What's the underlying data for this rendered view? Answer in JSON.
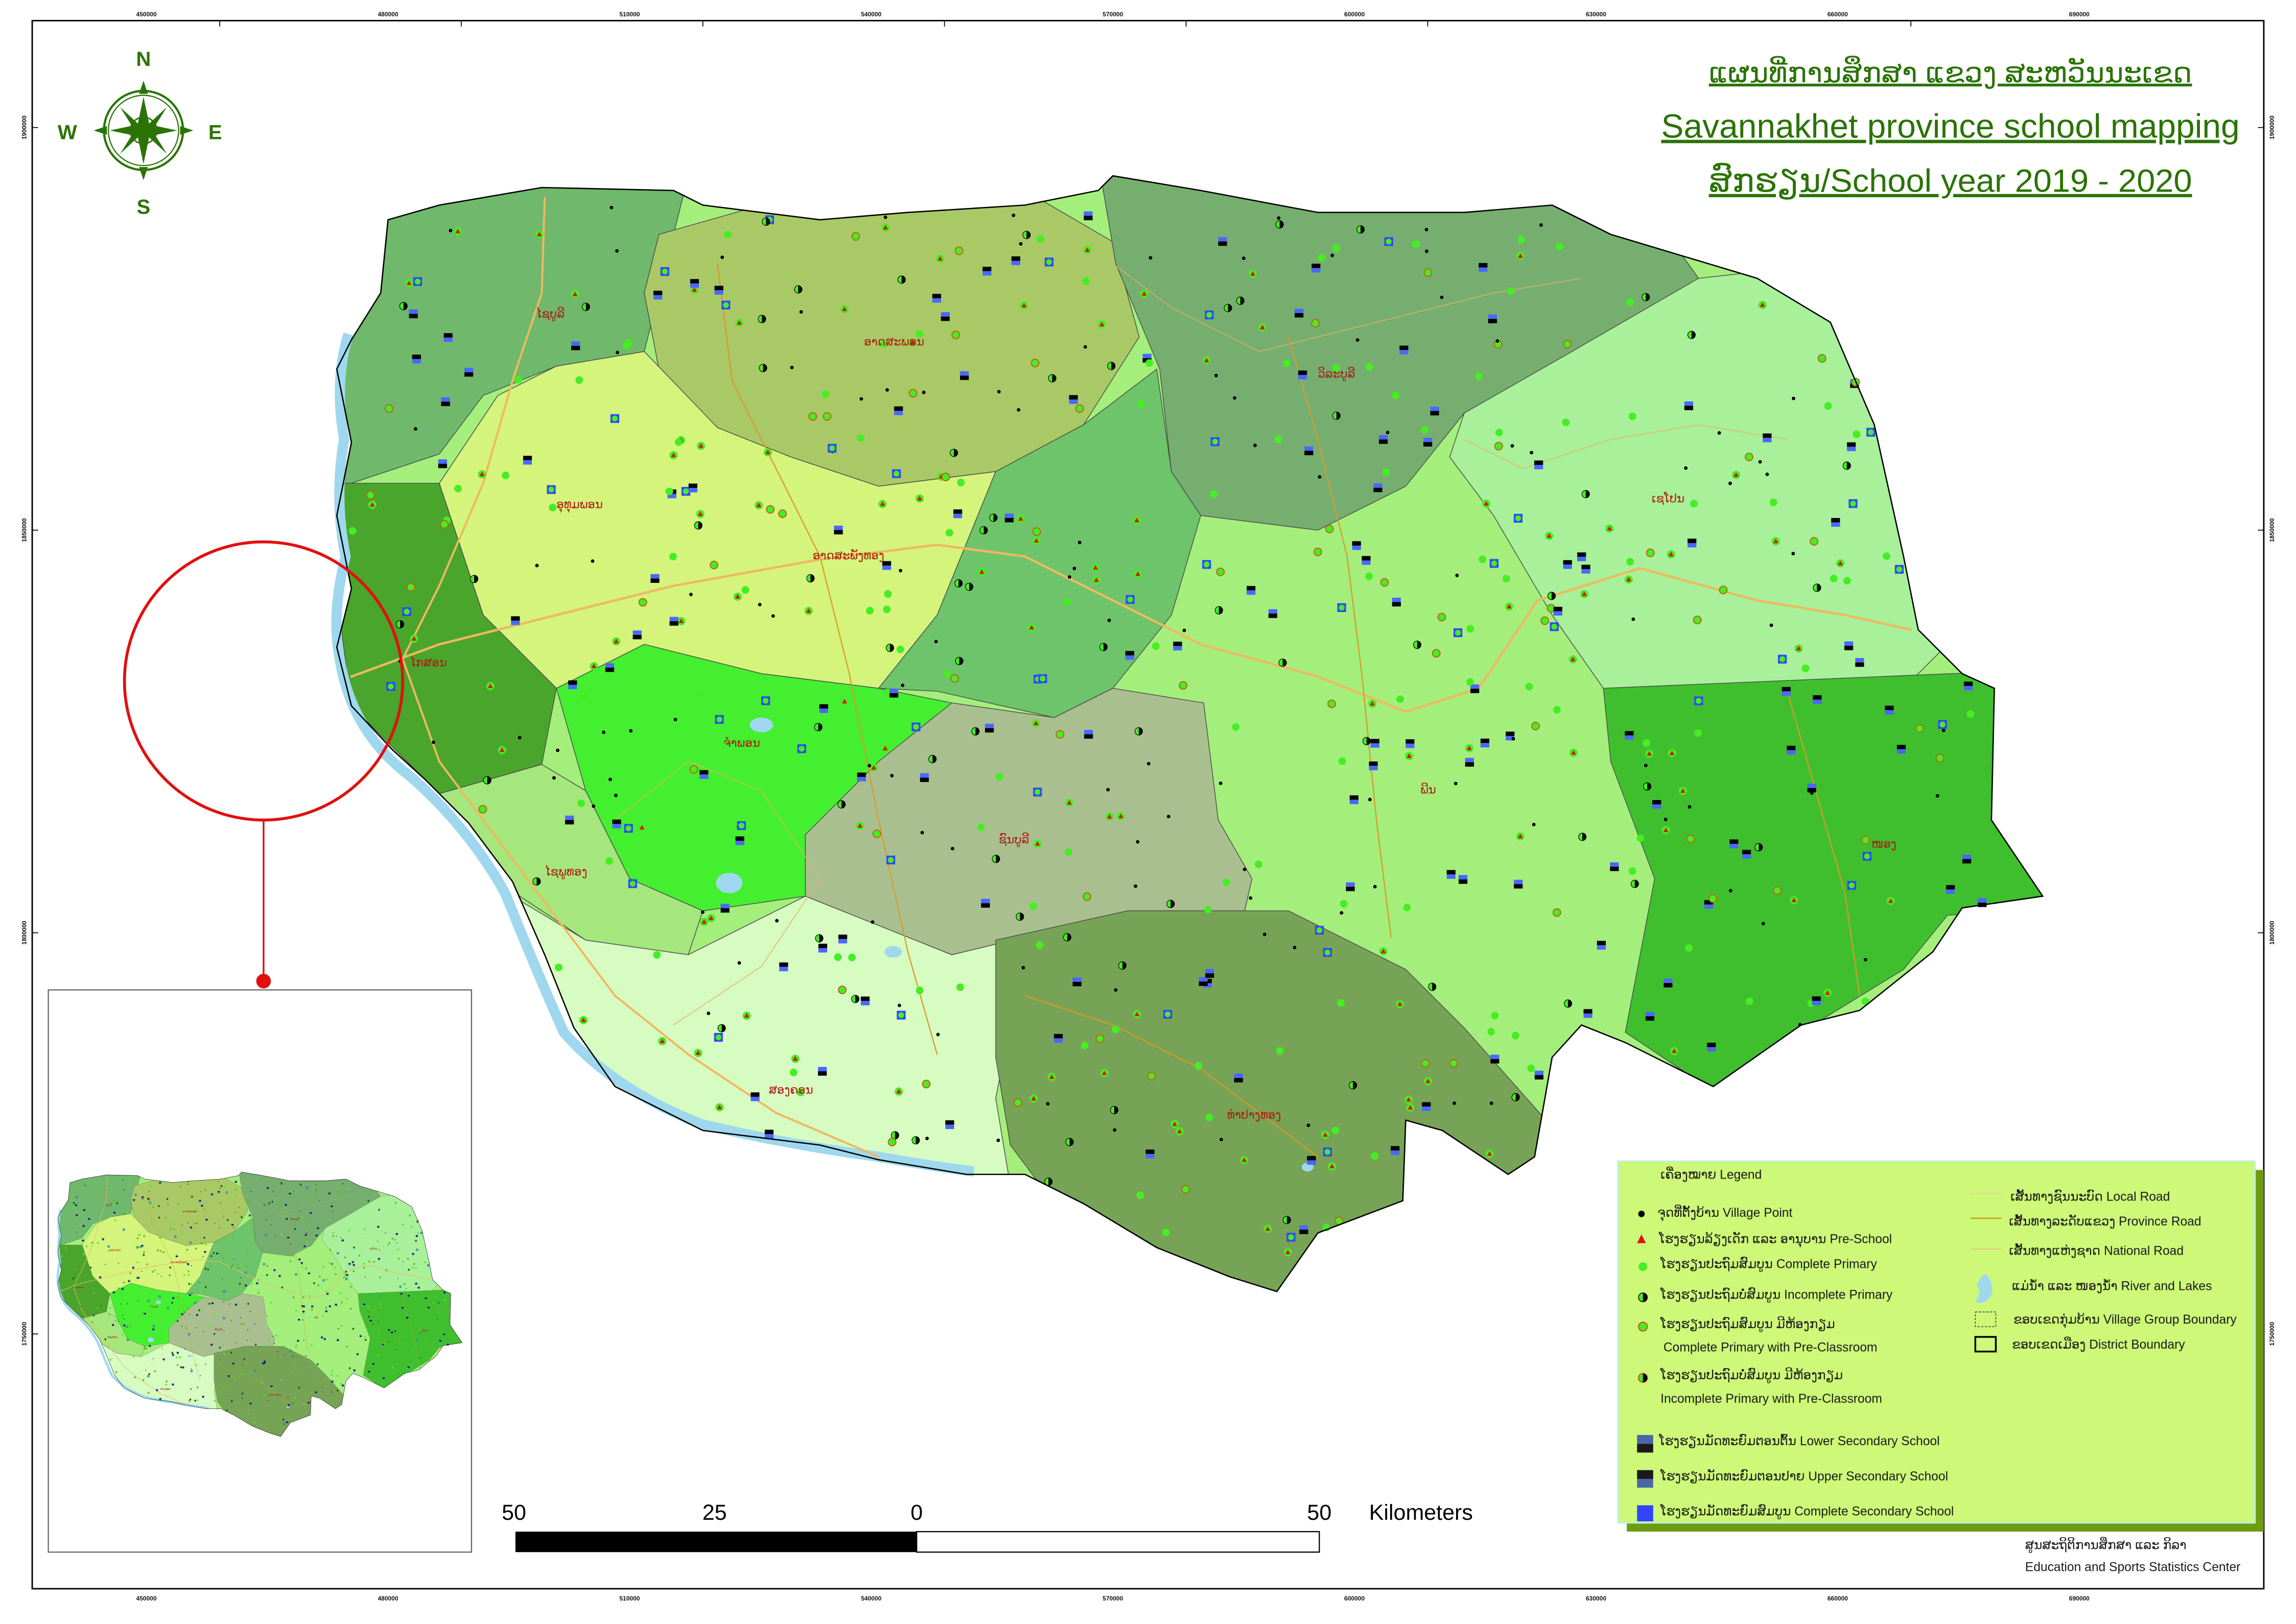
{
  "title": {
    "lao": "ແຜນທີ່ການສຶກສາ ແຂວງ ສະຫວັນນະເຂດ",
    "english": "Savannakhet province school mapping",
    "year": "ສົກຮຽນ/School  year 2019 - 2020",
    "color": "#2b7306"
  },
  "compass": {
    "n": "N",
    "s": "S",
    "e": "E",
    "w": "W",
    "color": "#2b7306"
  },
  "grid": {
    "x_ticks": [
      "450000",
      "480000",
      "510000",
      "540000",
      "570000",
      "600000",
      "630000",
      "660000",
      "690000"
    ],
    "y_ticks": [
      "1900000",
      "1850000",
      "1800000",
      "1750000"
    ]
  },
  "map": {
    "districts": [
      {
        "name": "ໄຊບູລີ"
      },
      {
        "name": "ອາດສະພອນ"
      },
      {
        "name": "ວິລະບູລີ"
      },
      {
        "name": "ເຊໂປນ"
      },
      {
        "name": "ອຸທຸມພອນ"
      },
      {
        "name": "ອາດສະພັງທອງ"
      },
      {
        "name": "ໄກສອນ"
      },
      {
        "name": "ຈຳພອນ"
      },
      {
        "name": "ພີນ"
      },
      {
        "name": "ຊົນບູລີ"
      },
      {
        "name": "ໄຊພູທອງ"
      },
      {
        "name": "ໜອງ"
      },
      {
        "name": "ສອງຄອນ"
      },
      {
        "name": "ທ່າປາງທອງ"
      }
    ],
    "colors": {
      "river": "#9fd8ee",
      "national_road": "#f0b860",
      "province_road": "#d89a2a",
      "local_road": "#e8b060",
      "highlight_circle": "#e01010"
    }
  },
  "scale_bar": {
    "labels": [
      "50",
      "25",
      "0",
      "50"
    ],
    "unit": "Kilometers"
  },
  "legend": {
    "header": "ເຄື່ອງໝາຍ Legend",
    "background": "#cdf878",
    "shadow": "#6d9c10",
    "items": [
      {
        "icon": "village-point",
        "label": "ຈຸດທີ່ຕັ້ງບ້ານ Village Point"
      },
      {
        "icon": "pre-school",
        "label": "ໂຮງຮຽນລ້ຽງເດັກ ແລະ ອານຸບານ Pre-School"
      },
      {
        "icon": "complete-primary",
        "label": "ໂຮງຮຽນປະຖົມສົມບູນ Complete Primary"
      },
      {
        "icon": "incomplete-primary",
        "label": "ໂຮງຮຽນປະຖົມບໍ່ສົມບູນ Incomplete  Primary"
      },
      {
        "icon": "complete-primary-preclass",
        "label": "ໂຮງຮຽນປະຖົມສົມບູນ ມີຫ້ອງກຽມ",
        "label2": "Complete Primary  with Pre-Classroom"
      },
      {
        "icon": "incomplete-primary-preclass",
        "label": "ໂຮງຮຽນປະຖົມບໍ່ສົມບູນ ມີຫ້ອງກຽມ",
        "label2": "Incomplete  Primary with Pre-Classroom"
      },
      {
        "icon": "lower-secondary",
        "label": "ໂຮງຮຽນມັດທະຍົມຕອນຕົ້ນ Lower Secondary School"
      },
      {
        "icon": "upper-secondary",
        "label": "ໂຮງຮຽນມັດທະຍົມຕອນປາຍ Upper Secondary School"
      },
      {
        "icon": "complete-secondary",
        "label": "ໂຮງຮຽນມັດທະຍົມສົມບູນ Complete Secondary School"
      }
    ],
    "lines": [
      {
        "icon": "local-road",
        "label": "ເສັ້ນທາງຊົນນະບົດ Local Road"
      },
      {
        "icon": "province-road",
        "label": "ເສັ້ນທາງລະດັບແຂວງ Province Road"
      },
      {
        "icon": "national-road",
        "label": "ເສັ້ນທາງແຫ່ງຊາດ  National Road"
      },
      {
        "icon": "river-lakes",
        "label": "ແມ່ນ້ຳ ແລະ ໜອງນ້ຳ River and Lakes"
      },
      {
        "icon": "village-group-boundary",
        "label": "ຂອບເຂດກຸ່ມບ້ານ Village Group Boundary"
      },
      {
        "icon": "district-boundary",
        "label": "ຂອບເຂດເມືອງ District Boundary"
      }
    ]
  },
  "footer": {
    "lao": "ສູນສະຖິຕິການສຶກສາ ແລະ ກິລາ",
    "english": "Education and Sports Statistics Center"
  }
}
